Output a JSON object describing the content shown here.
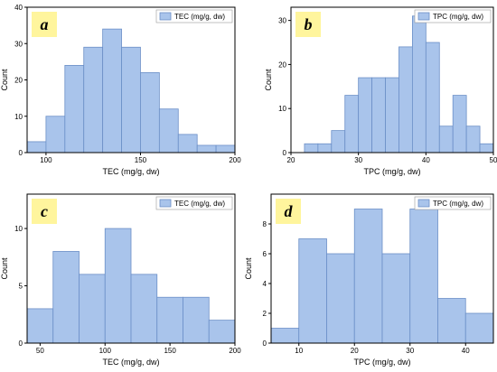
{
  "colors": {
    "bar_fill": "#a9c4eb",
    "bar_stroke": "#6b8fc7",
    "label_box": "#fff59d"
  },
  "chart_data": [
    {
      "panel": "a",
      "type": "bar",
      "xlabel": "TEC (mg/g, dw)",
      "ylabel": "Count",
      "legend": "TEC (mg/g, dw)",
      "legend_position": "top-right",
      "xlim": [
        90,
        200
      ],
      "ylim": [
        0,
        40
      ],
      "xticks": [
        100,
        150,
        200
      ],
      "yticks": [
        0,
        10,
        20,
        30,
        40
      ],
      "bin_edges": [
        90,
        100,
        110,
        120,
        130,
        140,
        150,
        160,
        170,
        180,
        190,
        200
      ],
      "values": [
        3,
        10,
        24,
        29,
        34,
        29,
        22,
        12,
        5,
        2,
        2
      ]
    },
    {
      "panel": "b",
      "type": "bar",
      "xlabel": "TPC (mg/g, dw)",
      "ylabel": "Count",
      "legend": "TPC (mg/g, dw)",
      "legend_position": "top-right",
      "xlim": [
        20,
        50
      ],
      "ylim": [
        0,
        33
      ],
      "xticks": [
        20,
        30,
        40,
        50
      ],
      "yticks": [
        0,
        10,
        20,
        30
      ],
      "bin_edges": [
        22,
        24,
        26,
        28,
        30,
        32,
        34,
        36,
        38,
        40,
        42,
        44,
        46,
        48,
        50
      ],
      "values": [
        2,
        2,
        5,
        13,
        17,
        17,
        17,
        24,
        31,
        25,
        6,
        13,
        6,
        2
      ]
    },
    {
      "panel": "c",
      "type": "bar",
      "xlabel": "TEC (mg/g, dw)",
      "ylabel": "Count",
      "legend": "TEC (mg/g, dw)",
      "legend_position": "top-right",
      "xlim": [
        40,
        200
      ],
      "ylim": [
        0,
        13
      ],
      "xticks": [
        50,
        100,
        150,
        200
      ],
      "yticks": [
        0,
        5,
        10
      ],
      "bin_edges": [
        40,
        60,
        80,
        100,
        120,
        140,
        160,
        180,
        200
      ],
      "values": [
        3,
        8,
        6,
        10,
        6,
        4,
        4,
        2
      ]
    },
    {
      "panel": "d",
      "type": "bar",
      "xlabel": "TPC (mg/g, dw)",
      "ylabel": "Count",
      "legend": "TPC (mg/g, dw)",
      "legend_position": "top-right",
      "xlim": [
        5,
        45
      ],
      "ylim": [
        0,
        10
      ],
      "xticks": [
        10,
        20,
        30,
        40
      ],
      "yticks": [
        0,
        2,
        4,
        6,
        8
      ],
      "bin_edges": [
        5,
        10,
        15,
        20,
        25,
        30,
        35,
        40,
        45
      ],
      "values": [
        1,
        7,
        6,
        9,
        6,
        9,
        3,
        2
      ]
    }
  ]
}
